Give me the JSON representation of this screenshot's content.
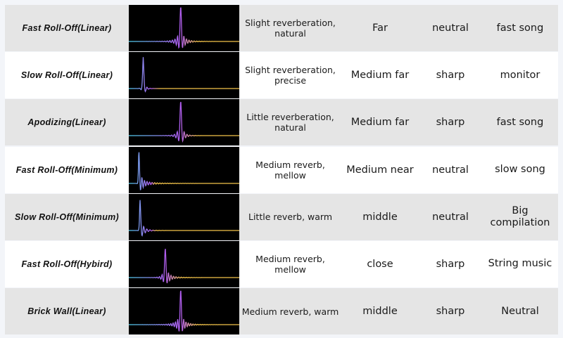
{
  "rows": [
    {
      "filter": "Fast Roll-Off(Linear)",
      "reverb": "Slight reverberation, natural",
      "distance": "Far",
      "tone": "neutral",
      "use": "fast song"
    },
    {
      "filter": "Slow Roll-Off(Linear)",
      "reverb": "Slight reverberation, precise",
      "distance": "Medium far",
      "tone": "sharp",
      "use": "monitor"
    },
    {
      "filter": "Apodizing(Linear)",
      "reverb": "Little reverberation, natural",
      "distance": "Medium far",
      "tone": "sharp",
      "use": "fast song"
    },
    {
      "filter": "Fast Roll-Off(Minimum)",
      "reverb": "Medium reverb, mellow",
      "distance": "Medium near",
      "tone": "neutral",
      "use": "slow song"
    },
    {
      "filter": "Slow Roll-Off(Minimum)",
      "reverb": "Little reverb, warm",
      "distance": "middle",
      "tone": "neutral",
      "use": "Big compilation"
    },
    {
      "filter": "Fast Roll-Off(Hybird)",
      "reverb": "Medium reverb, mellow",
      "distance": "close",
      "tone": "sharp",
      "use": "String music"
    },
    {
      "filter": "Brick Wall(Linear)",
      "reverb": "Medium reverb, warm",
      "distance": "middle",
      "tone": "sharp",
      "use": "Neutral"
    }
  ],
  "colors": {
    "wave_start": "#4fd0ee",
    "wave_mid": "#b05cf0",
    "wave_end": "#f2c34a",
    "row_gray": "#e5e5e5"
  }
}
